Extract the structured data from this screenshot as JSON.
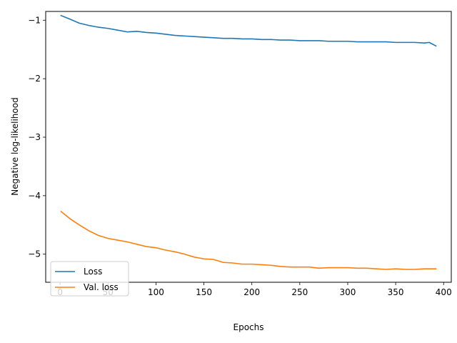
{
  "chart_data": {
    "type": "line",
    "title": "",
    "xlabel": "Epochs",
    "ylabel": "Negative log-likelihood",
    "xlim": [
      -15,
      408
    ],
    "ylim": [
      -5.48,
      -0.85
    ],
    "xticks": [
      0,
      50,
      100,
      150,
      200,
      250,
      300,
      350,
      400
    ],
    "xtick_labels": [
      "0",
      "50",
      "100",
      "150",
      "200",
      "250",
      "300",
      "350",
      "400"
    ],
    "yticks": [
      -1,
      -2,
      -3,
      -4,
      -5
    ],
    "ytick_labels": [
      "−1",
      "−2",
      "−3",
      "−4",
      "−5"
    ],
    "grid": false,
    "legend_position": "lower-left",
    "series": [
      {
        "name": "Loss",
        "color": "#1f77b4",
        "x": [
          1,
          10,
          20,
          30,
          40,
          50,
          60,
          70,
          80,
          90,
          100,
          110,
          120,
          130,
          140,
          150,
          160,
          170,
          180,
          190,
          200,
          210,
          220,
          230,
          240,
          250,
          260,
          270,
          280,
          290,
          300,
          310,
          320,
          330,
          340,
          350,
          360,
          370,
          380,
          385,
          392
        ],
        "values": [
          -0.92,
          -0.98,
          -1.05,
          -1.09,
          -1.12,
          -1.14,
          -1.17,
          -1.2,
          -1.19,
          -1.21,
          -1.22,
          -1.24,
          -1.26,
          -1.27,
          -1.28,
          -1.29,
          -1.3,
          -1.31,
          -1.31,
          -1.32,
          -1.32,
          -1.33,
          -1.33,
          -1.34,
          -1.34,
          -1.35,
          -1.35,
          -1.35,
          -1.36,
          -1.36,
          -1.36,
          -1.37,
          -1.37,
          -1.37,
          -1.37,
          -1.38,
          -1.38,
          -1.38,
          -1.39,
          -1.38,
          -1.44
        ]
      },
      {
        "name": "Val. loss",
        "color": "#ff7f0e",
        "x": [
          1,
          10,
          20,
          30,
          40,
          50,
          60,
          70,
          80,
          90,
          100,
          110,
          120,
          130,
          140,
          150,
          160,
          170,
          180,
          190,
          200,
          210,
          220,
          230,
          240,
          250,
          260,
          270,
          280,
          290,
          300,
          310,
          320,
          330,
          340,
          350,
          360,
          370,
          380,
          392
        ],
        "values": [
          -4.27,
          -4.39,
          -4.5,
          -4.6,
          -4.68,
          -4.73,
          -4.76,
          -4.79,
          -4.83,
          -4.87,
          -4.89,
          -4.93,
          -4.96,
          -5.0,
          -5.05,
          -5.08,
          -5.09,
          -5.14,
          -5.15,
          -5.17,
          -5.17,
          -5.18,
          -5.19,
          -5.21,
          -5.22,
          -5.22,
          -5.22,
          -5.24,
          -5.23,
          -5.23,
          -5.23,
          -5.24,
          -5.24,
          -5.25,
          -5.26,
          -5.25,
          -5.26,
          -5.26,
          -5.25,
          -5.25
        ]
      }
    ]
  }
}
